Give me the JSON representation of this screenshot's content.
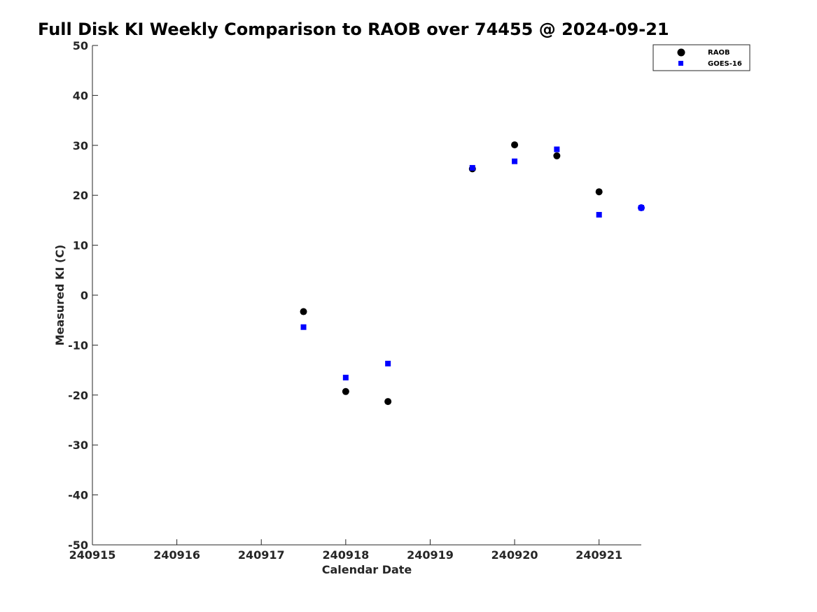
{
  "chart_data": {
    "type": "scatter",
    "title": "Full Disk KI Weekly Comparison to RAOB over 74455 @ 2024-09-21",
    "xlabel": "Calendar Date",
    "ylabel": "Measured KI (C)",
    "xlim": [
      240915,
      240921.5
    ],
    "ylim": [
      -50,
      50
    ],
    "x_ticks": [
      240915,
      240916,
      240917,
      240918,
      240919,
      240920,
      240921
    ],
    "x_tick_labels": [
      "240915",
      "240916",
      "240917",
      "240918",
      "240919",
      "240920",
      "240921"
    ],
    "y_ticks": [
      50,
      40,
      30,
      20,
      10,
      0,
      -10,
      -20,
      -30,
      -40,
      -50
    ],
    "y_tick_labels": [
      "50",
      "40",
      "30",
      "20",
      "10",
      "0",
      "-10",
      "-20",
      "-30",
      "-40",
      "-50"
    ],
    "grid": false,
    "legend_position": "top-right",
    "series": [
      {
        "name": "RAOB",
        "marker": "circle",
        "color": "#000000",
        "x": [
          240917.5,
          240918,
          240918.5,
          240919.5,
          240920,
          240920.5,
          240921,
          240921.5
        ],
        "y": [
          -3.3,
          -19.3,
          -21.3,
          25.3,
          30.1,
          27.9,
          20.7,
          17.5
        ]
      },
      {
        "name": "GOES-16",
        "marker": "square",
        "color": "#0000ff",
        "x": [
          240917.5,
          240918,
          240918.5,
          240919.5,
          240920,
          240920.5,
          240921,
          240921.5
        ],
        "y": [
          -6.4,
          -16.5,
          -13.7,
          25.5,
          26.8,
          29.2,
          16.1,
          17.5
        ]
      }
    ]
  }
}
